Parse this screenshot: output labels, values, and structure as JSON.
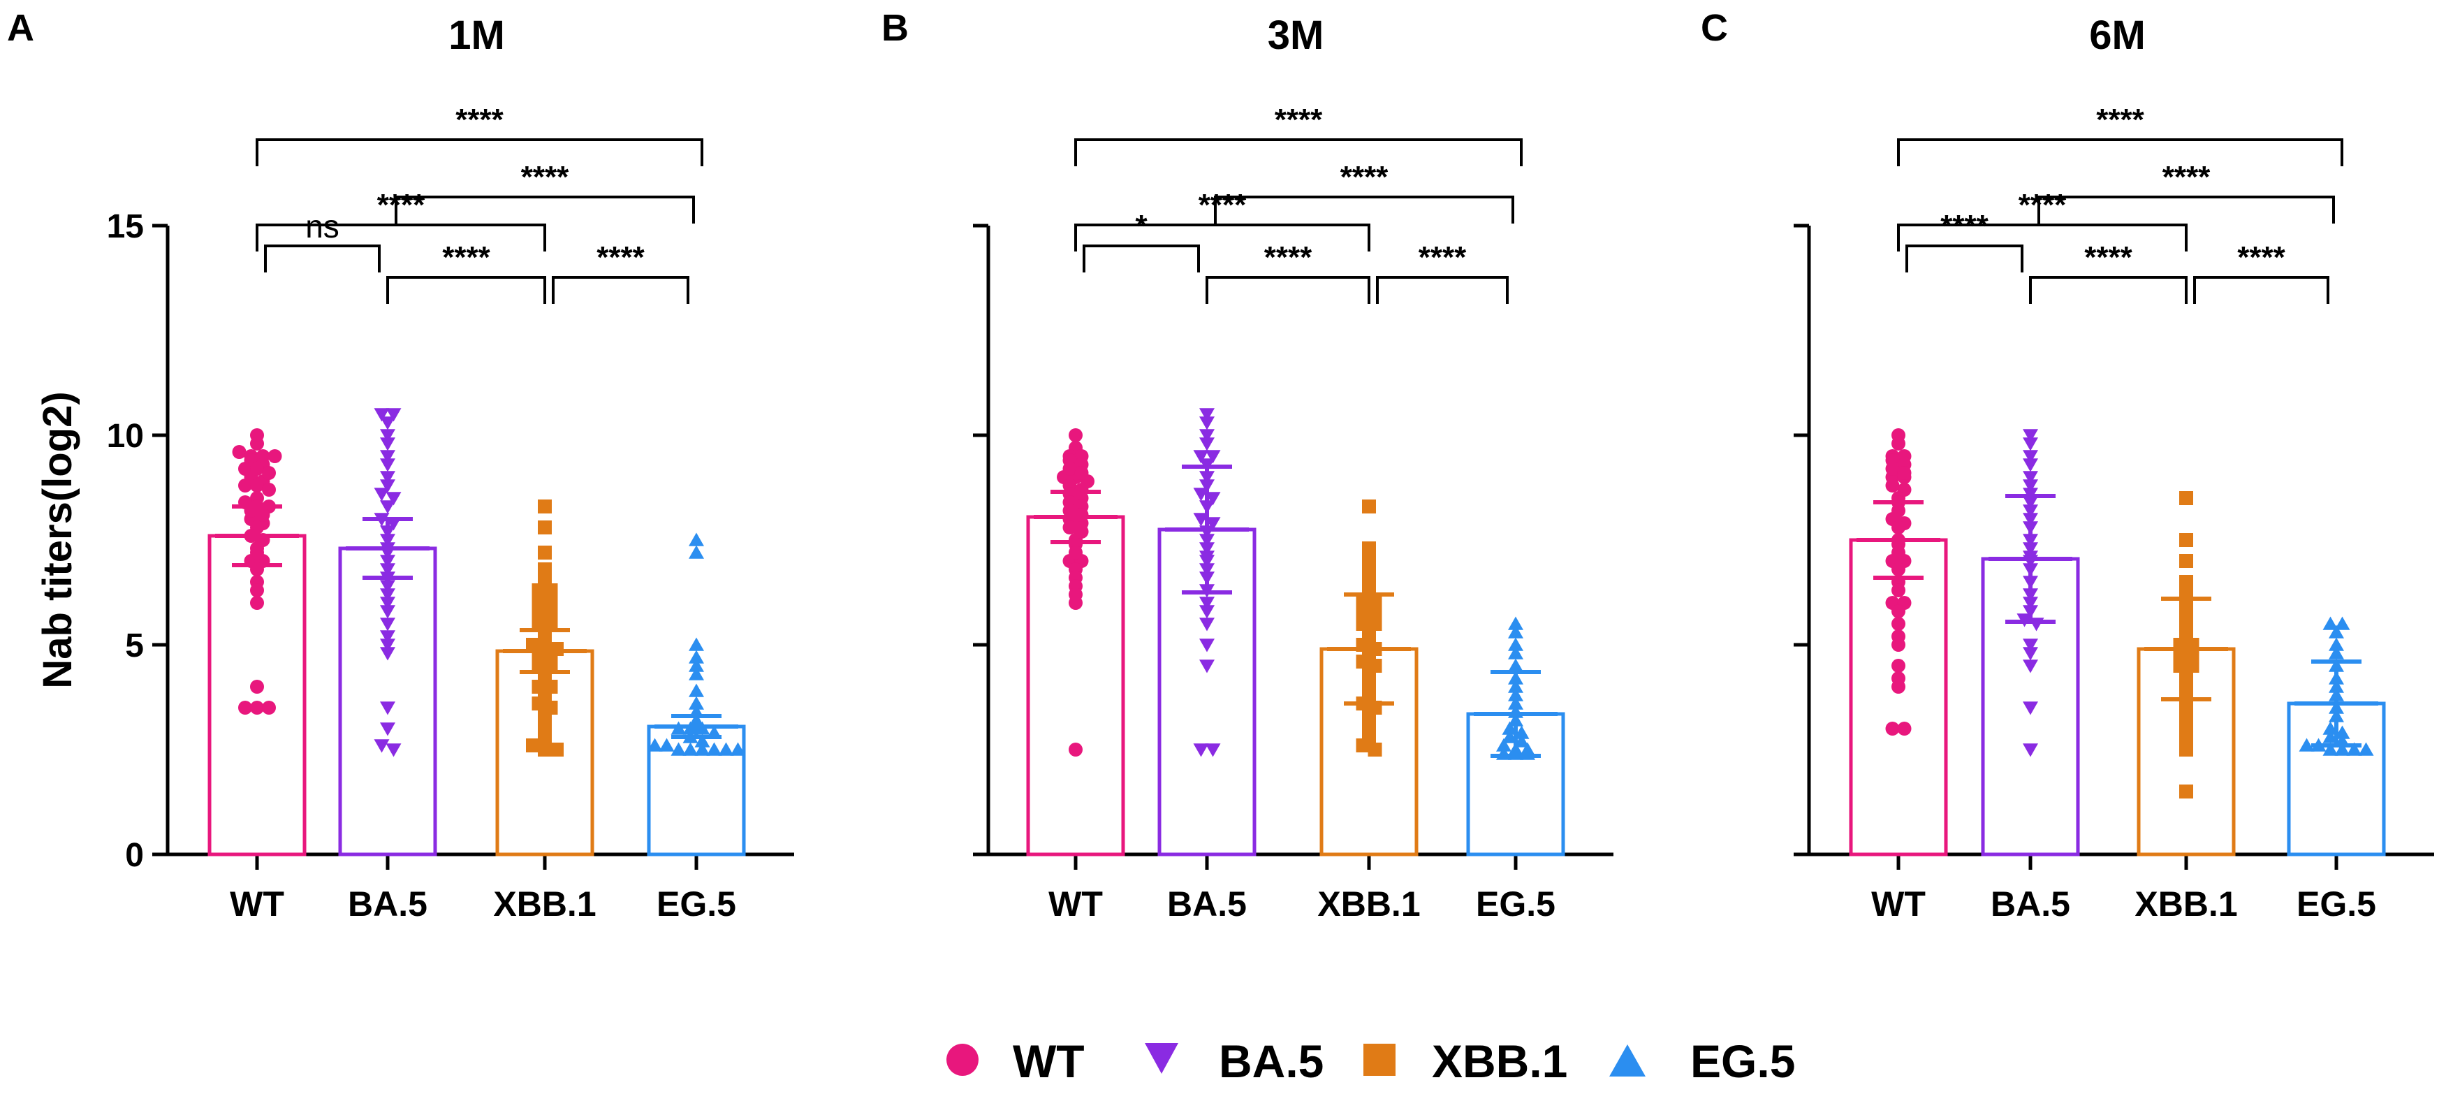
{
  "chart_data": [
    {
      "type": "bar",
      "panel_label": "A",
      "title": "1M",
      "ylabel": "Nab titers(log2)",
      "ylim": [
        0,
        15
      ],
      "yticks": [
        "0",
        "5",
        "10",
        "15"
      ],
      "categories": [
        "WT",
        "BA.5",
        "XBB.1",
        "EG.5"
      ],
      "means": [
        7.6,
        7.3,
        4.85,
        3.05
      ],
      "sd": [
        0.7,
        0.7,
        0.5,
        0.25
      ],
      "points": [
        [
          10,
          9.8,
          9.6,
          9.5,
          9.5,
          9.5,
          9.4,
          9.3,
          9.2,
          9.2,
          9.1,
          9,
          8.9,
          8.8,
          8.8,
          8.7,
          8.5,
          8.4,
          8.3,
          8.3,
          8.2,
          8.1,
          8,
          7.9,
          7.8,
          7.6,
          7.5,
          7.3,
          7.2,
          7,
          7,
          6.8,
          6.5,
          6.3,
          6,
          4,
          3.5,
          3.5,
          3.5
        ],
        [
          10.5,
          10.5,
          10.3,
          10,
          9.8,
          9.5,
          9.3,
          9,
          8.8,
          8.6,
          8.5,
          8.3,
          8,
          7.9,
          7.7,
          7.5,
          7.3,
          7.2,
          7,
          6.8,
          6.6,
          6.4,
          6.2,
          6,
          5.8,
          5.5,
          5.2,
          5,
          4.8,
          3.5,
          3,
          2.6,
          2.5
        ],
        [
          8.3,
          7.8,
          7.2,
          6.8,
          6.5,
          6.3,
          6.3,
          6,
          6,
          5.8,
          5.7,
          5.5,
          5.5,
          5.3,
          5.2,
          5,
          5,
          4.9,
          4.8,
          4.7,
          4.5,
          4.5,
          4.3,
          4.2,
          4,
          4,
          3.8,
          3.6,
          3.5,
          3.3,
          3.2,
          3,
          2.8,
          2.6,
          2.5,
          2.5
        ],
        [
          7.5,
          7.2,
          5,
          4.7,
          4.5,
          4.3,
          3.9,
          3.6,
          3.4,
          3.2,
          3,
          3,
          3,
          2.9,
          2.8,
          2.7,
          2.6,
          2.6,
          2.5,
          2.5,
          2.5,
          2.5,
          2.5,
          2.5
        ]
      ],
      "comparisons": [
        {
          "from": 0,
          "to": 3,
          "label": "****"
        },
        {
          "from": 1,
          "to": 3,
          "label": "****"
        },
        {
          "from": 0,
          "to": 2,
          "label": "****"
        },
        {
          "from": 0,
          "to": 1,
          "label": "ns"
        },
        {
          "from": 1,
          "to": 2,
          "label": "****"
        },
        {
          "from": 2,
          "to": 3,
          "label": "****"
        }
      ]
    },
    {
      "type": "bar",
      "panel_label": "B",
      "title": "3M",
      "ylabel": "",
      "ylim": [
        0,
        15
      ],
      "yticks": [
        "",
        "",
        "",
        ""
      ],
      "categories": [
        "WT",
        "BA.5",
        "XBB.1",
        "EG.5"
      ],
      "means": [
        8.05,
        7.75,
        4.9,
        3.35
      ],
      "sd": [
        0.6,
        1.5,
        1.3,
        1.0
      ],
      "points": [
        [
          10,
          9.7,
          9.5,
          9.5,
          9.4,
          9.3,
          9.2,
          9.1,
          9,
          9,
          8.9,
          8.8,
          8.7,
          8.6,
          8.5,
          8.4,
          8.3,
          8.2,
          8.1,
          8,
          7.9,
          7.8,
          7.7,
          7.5,
          7.4,
          7.2,
          7,
          7,
          6.8,
          6.6,
          6.4,
          6.2,
          6,
          2.5
        ],
        [
          10.5,
          10.3,
          10,
          9.8,
          9.5,
          9.5,
          9.3,
          9,
          8.8,
          8.6,
          8.5,
          8.3,
          8,
          7.9,
          7.7,
          7.5,
          7.3,
          7.1,
          7,
          6.8,
          6.6,
          6.3,
          6,
          5.8,
          5.5,
          5,
          4.5,
          2.5,
          2.5
        ],
        [
          8.3,
          7.3,
          7,
          6.8,
          6.5,
          6.3,
          6,
          6,
          5.8,
          5.7,
          5.5,
          5.5,
          5.3,
          5.2,
          5,
          4.9,
          4.8,
          4.6,
          4.5,
          4.3,
          4.2,
          4,
          3.8,
          3.6,
          3.5,
          3.3,
          3.2,
          3,
          2.8,
          2.6,
          2.5
        ],
        [
          5.5,
          5.3,
          5,
          4.8,
          4.5,
          4.2,
          4,
          3.8,
          3.6,
          3.4,
          3.2,
          3,
          2.9,
          2.8,
          2.7,
          2.6,
          2.5,
          2.5,
          2.4,
          2.4,
          2.4
        ]
      ],
      "comparisons": [
        {
          "from": 0,
          "to": 3,
          "label": "****"
        },
        {
          "from": 1,
          "to": 3,
          "label": "****"
        },
        {
          "from": 0,
          "to": 2,
          "label": "****"
        },
        {
          "from": 0,
          "to": 1,
          "label": "*"
        },
        {
          "from": 1,
          "to": 2,
          "label": "****"
        },
        {
          "from": 2,
          "to": 3,
          "label": "****"
        }
      ]
    },
    {
      "type": "bar",
      "panel_label": "C",
      "title": "6M",
      "ylabel": "",
      "ylim": [
        0,
        15
      ],
      "yticks": [
        "",
        "",
        "",
        ""
      ],
      "categories": [
        "WT",
        "BA.5",
        "XBB.1",
        "EG.5"
      ],
      "means": [
        7.5,
        7.05,
        4.9,
        3.6
      ],
      "sd": [
        0.9,
        1.5,
        1.2,
        1.0
      ],
      "points": [
        [
          10,
          9.8,
          9.5,
          9.5,
          9.4,
          9.3,
          9.2,
          9.1,
          9,
          9,
          8.8,
          8.7,
          8.5,
          8.4,
          8.2,
          8,
          7.9,
          7.8,
          7.5,
          7.4,
          7.2,
          7,
          7,
          6.8,
          6.5,
          6.3,
          6,
          6,
          5.8,
          5.5,
          5.2,
          5,
          4.5,
          4.2,
          4,
          3,
          3
        ],
        [
          10,
          9.8,
          9.5,
          9.3,
          9,
          8.8,
          8.6,
          8.4,
          8.2,
          8,
          7.8,
          7.5,
          7.3,
          7.1,
          7,
          6.8,
          6.5,
          6.2,
          6,
          5.8,
          5.6,
          5.5,
          5,
          4.8,
          4.5,
          3.5,
          2.5
        ],
        [
          8.5,
          7.5,
          7,
          6.5,
          6.2,
          6,
          5.8,
          5.5,
          5.3,
          5,
          5,
          4.8,
          4.7,
          4.5,
          4.5,
          4.3,
          4.2,
          4,
          3.8,
          3.5,
          3.2,
          3,
          2.8,
          2.5,
          1.5
        ],
        [
          5.5,
          5.5,
          5.3,
          5,
          4.8,
          4.5,
          4.2,
          4,
          3.8,
          3.5,
          3.3,
          3,
          2.9,
          2.8,
          2.7,
          2.6,
          2.6,
          2.5,
          2.5,
          2.5,
          2.5
        ]
      ],
      "comparisons": [
        {
          "from": 0,
          "to": 3,
          "label": "****"
        },
        {
          "from": 1,
          "to": 3,
          "label": "****"
        },
        {
          "from": 0,
          "to": 2,
          "label": "****"
        },
        {
          "from": 0,
          "to": 1,
          "label": "****"
        },
        {
          "from": 1,
          "to": 2,
          "label": "****"
        },
        {
          "from": 2,
          "to": 3,
          "label": "****"
        }
      ]
    }
  ],
  "series": [
    {
      "name": "WT",
      "color": "#e8177d",
      "marker": "circle"
    },
    {
      "name": "BA.5",
      "color": "#8a2be2",
      "marker": "triangle-down"
    },
    {
      "name": "XBB.1",
      "color": "#e07b16",
      "marker": "square"
    },
    {
      "name": "EG.5",
      "color": "#2b8ef0",
      "marker": "triangle-up"
    }
  ],
  "legend": {
    "position": "bottom-center",
    "items": [
      "WT",
      "BA.5",
      "XBB.1",
      "EG.5"
    ]
  }
}
